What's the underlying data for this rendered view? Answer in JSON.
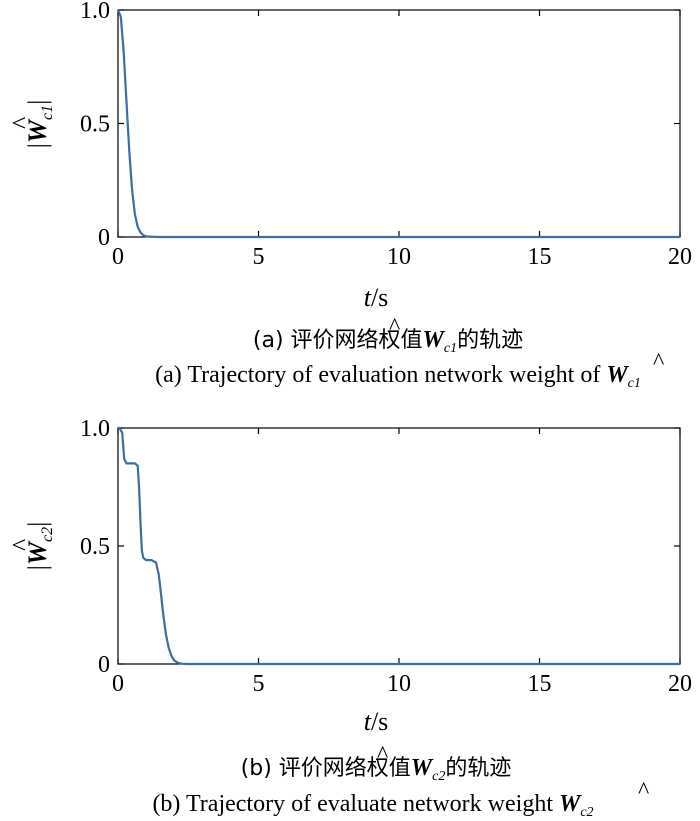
{
  "chart_data": [
    {
      "type": "line",
      "series": [
        {
          "x": [
            0,
            0.1,
            0.2,
            0.3,
            0.4,
            0.5,
            0.6,
            0.7,
            0.8,
            0.9,
            1.0,
            1.2,
            1.5,
            2.0,
            3.0,
            5,
            10,
            15,
            20
          ],
          "values": [
            1.0,
            0.97,
            0.82,
            0.6,
            0.38,
            0.21,
            0.1,
            0.045,
            0.02,
            0.008,
            0.003,
            0.001,
            0.0,
            0.0,
            0.0,
            0.0,
            0.0,
            0.0,
            0.0
          ]
        }
      ],
      "color": "#3a6ea5",
      "xlim": [
        0,
        20
      ],
      "ylim": [
        0,
        1.0
      ],
      "x_ticks": [
        "0",
        "5",
        "10",
        "15",
        "20"
      ],
      "y_ticks": [
        "0",
        "0.5",
        "1.0"
      ],
      "x_tick_values": [
        0,
        5,
        10,
        15,
        20
      ],
      "y_tick_values": [
        0,
        0.5,
        1.0
      ],
      "xlabel": {
        "var": "t",
        "unit": "/s"
      },
      "ylabel": {
        "left": "|",
        "var": "W",
        "sub": "c1",
        "right": "|"
      },
      "caption_cn": {
        "pre": "(a) 评价网络权值",
        "var": "W",
        "sub": "c1",
        "post": "的轨迹"
      },
      "caption_en": {
        "pre": "(a) Trajectory of evaluation network weight of ",
        "var": "W",
        "sub": "c1"
      },
      "grid": false
    },
    {
      "type": "line",
      "series": [
        {
          "x": [
            0,
            0.05,
            0.15,
            0.22,
            0.3,
            0.6,
            0.7,
            0.75,
            0.8,
            0.85,
            0.9,
            0.95,
            1.0,
            1.2,
            1.35,
            1.45,
            1.5,
            1.6,
            1.7,
            1.8,
            1.9,
            2.0,
            2.1,
            2.2,
            2.3,
            2.5,
            3,
            5,
            10,
            15,
            20
          ],
          "values": [
            1.0,
            1.0,
            0.98,
            0.87,
            0.85,
            0.85,
            0.84,
            0.75,
            0.6,
            0.48,
            0.45,
            0.445,
            0.44,
            0.44,
            0.43,
            0.38,
            0.33,
            0.22,
            0.13,
            0.07,
            0.035,
            0.015,
            0.007,
            0.003,
            0.001,
            0.0,
            0.0,
            0.0,
            0.0,
            0.0,
            0.0
          ]
        }
      ],
      "color": "#3a6ea5",
      "xlim": [
        0,
        20
      ],
      "ylim": [
        0,
        1.0
      ],
      "x_ticks": [
        "0",
        "5",
        "10",
        "15",
        "20"
      ],
      "y_ticks": [
        "0",
        "0.5",
        "1.0"
      ],
      "x_tick_values": [
        0,
        5,
        10,
        15,
        20
      ],
      "y_tick_values": [
        0,
        0.5,
        1.0
      ],
      "xlabel": {
        "var": "t",
        "unit": "/s"
      },
      "ylabel": {
        "left": "|",
        "var": "W",
        "sub": "c2",
        "right": "|"
      },
      "caption_cn": {
        "pre": "(b) 评价网络权值",
        "var": "W",
        "sub": "c2",
        "post": "的轨迹"
      },
      "caption_en": {
        "pre": "(b) Trajectory of evaluate network weight ",
        "var": "W",
        "sub": "c2"
      },
      "grid": false
    }
  ]
}
